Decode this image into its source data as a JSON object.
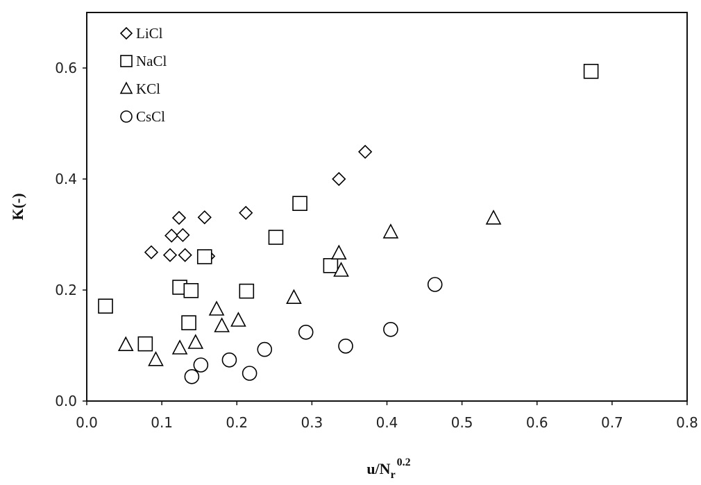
{
  "chart_data": {
    "type": "scatter",
    "xlabel": {
      "base": "u/N",
      "sub": "r",
      "sup": "0.2"
    },
    "ylabel": "K(-)",
    "xlim": [
      0,
      0.8
    ],
    "ylim": [
      0,
      0.7
    ],
    "xticks": [
      {
        "value": 0,
        "label": "0.0"
      },
      0.1,
      0.2,
      0.3,
      0.4,
      0.5,
      0.6,
      0.7,
      0.8
    ],
    "yticks": [
      {
        "value": 0,
        "label": "0.0"
      },
      0.2,
      0.4,
      0.6
    ],
    "grid": false,
    "legend": "top-left",
    "series": [
      {
        "name": "LiCl",
        "marker": "diamond",
        "color": "#000000",
        "x": [
          0.086,
          0.111,
          0.113,
          0.123,
          0.128,
          0.131,
          0.157,
          0.162,
          0.212,
          0.336,
          0.371
        ],
        "values": [
          0.268,
          0.263,
          0.298,
          0.33,
          0.299,
          0.263,
          0.331,
          0.261,
          0.339,
          0.4,
          0.449
        ]
      },
      {
        "name": "NaCl",
        "marker": "square",
        "color": "#000000",
        "x": [
          0.025,
          0.078,
          0.124,
          0.139,
          0.136,
          0.157,
          0.213,
          0.252,
          0.284,
          0.325,
          0.672
        ],
        "values": [
          0.171,
          0.103,
          0.205,
          0.199,
          0.141,
          0.26,
          0.198,
          0.295,
          0.356,
          0.244,
          0.594
        ]
      },
      {
        "name": "KCl",
        "marker": "triangle",
        "color": "#000000",
        "x": [
          0.052,
          0.092,
          0.124,
          0.145,
          0.173,
          0.18,
          0.202,
          0.276,
          0.336,
          0.339,
          0.405,
          0.542
        ],
        "values": [
          0.101,
          0.074,
          0.095,
          0.105,
          0.165,
          0.135,
          0.145,
          0.186,
          0.266,
          0.235,
          0.304,
          0.329
        ]
      },
      {
        "name": "CsCl",
        "marker": "circle",
        "color": "#000000",
        "x": [
          0.14,
          0.152,
          0.19,
          0.217,
          0.237,
          0.292,
          0.345,
          0.405,
          0.464
        ],
        "values": [
          0.044,
          0.065,
          0.074,
          0.05,
          0.093,
          0.124,
          0.099,
          0.129,
          0.21
        ]
      }
    ]
  }
}
